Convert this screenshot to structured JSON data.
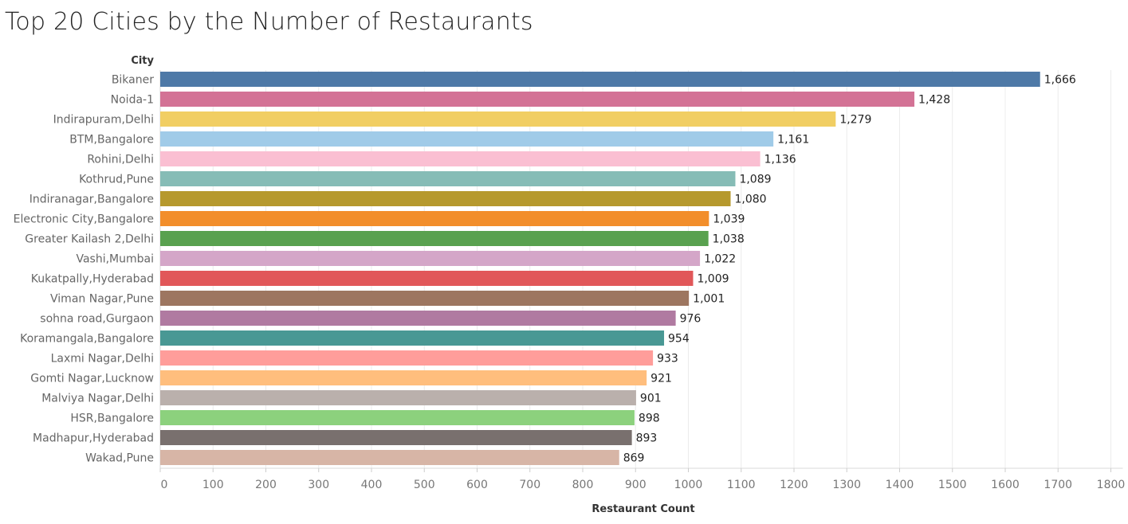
{
  "chart_data": {
    "type": "bar",
    "orientation": "horizontal",
    "title": "Top 20 Cities by the Number of Restaurants",
    "ylabel": "City",
    "xlabel": "Restaurant Count",
    "xlim": [
      0,
      1800
    ],
    "xticks": [
      "0",
      "100",
      "200",
      "300",
      "400",
      "500",
      "600",
      "700",
      "800",
      "900",
      "1000",
      "1100",
      "1200",
      "1300",
      "1400",
      "1500",
      "1600",
      "1700",
      "1800"
    ],
    "grid": true,
    "categories": [
      "Bikaner",
      "Noida-1",
      "Indirapuram,Delhi",
      "BTM,Bangalore",
      "Rohini,Delhi",
      "Kothrud,Pune",
      "Indiranagar,Bangalore",
      "Electronic City,Bangalore",
      "Greater Kailash 2,Delhi",
      "Vashi,Mumbai",
      "Kukatpally,Hyderabad",
      "Viman Nagar,Pune",
      "sohna road,Gurgaon",
      "Koramangala,Bangalore",
      "Laxmi Nagar,Delhi",
      "Gomti Nagar,Lucknow",
      "Malviya Nagar,Delhi",
      "HSR,Bangalore",
      "Madhapur,Hyderabad",
      "Wakad,Pune"
    ],
    "values": [
      1666,
      1428,
      1279,
      1161,
      1136,
      1089,
      1080,
      1039,
      1038,
      1022,
      1009,
      1001,
      976,
      954,
      933,
      921,
      901,
      898,
      893,
      869
    ],
    "value_labels": [
      "1,666",
      "1,428",
      "1,279",
      "1,161",
      "1,136",
      "1,089",
      "1,080",
      "1,039",
      "1,038",
      "1,022",
      "1,009",
      "1,001",
      "976",
      "954",
      "933",
      "921",
      "901",
      "898",
      "893",
      "869"
    ],
    "colors": [
      "#4e79a7",
      "#d37295",
      "#f1ce63",
      "#a0cbe8",
      "#fabfd2",
      "#86bcb6",
      "#b6992d",
      "#f28e2b",
      "#59a14f",
      "#d4a6c8",
      "#e15759",
      "#9d7660",
      "#b07aa1",
      "#499894",
      "#ff9d9a",
      "#ffbe7d",
      "#bab0ac",
      "#8cd17d",
      "#79706e",
      "#d7b5a6"
    ]
  }
}
